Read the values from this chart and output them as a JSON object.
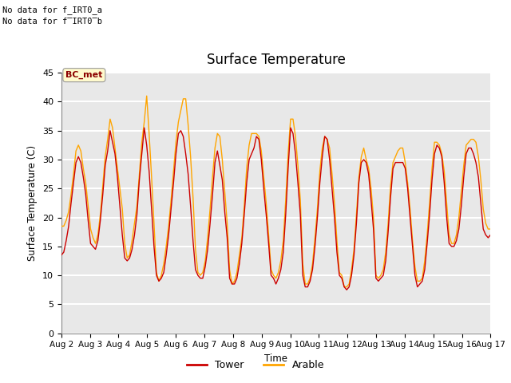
{
  "title": "Surface Temperature",
  "ylabel": "Surface Temperature (C)",
  "xlabel": "Time",
  "no_data_text_1": "No data for f_IRT0_a",
  "no_data_text_2": "No data for f̅IRT0̅b",
  "annotation_text": "BC_met",
  "annotation_color_text": "#8B0000",
  "annotation_color_bg": "#FFFACD",
  "ylim": [
    0,
    45
  ],
  "yticks": [
    0,
    5,
    10,
    15,
    20,
    25,
    30,
    35,
    40,
    45
  ],
  "xtick_labels": [
    "Aug 2",
    "Aug 3",
    "Aug 4",
    "Aug 5",
    "Aug 6",
    "Aug 7",
    "Aug 8",
    "Aug 9",
    "Aug 10",
    "Aug 11",
    "Aug 12",
    "Aug 13",
    "Aug 14",
    "Aug 15",
    "Aug 16",
    "Aug 17"
  ],
  "tower_color": "#CC0000",
  "arable_color": "#FFA500",
  "plot_bg_color": "#E8E8E8",
  "legend_labels": [
    "Tower",
    "Arable"
  ],
  "grid_color": "#FFFFFF",
  "tower_data": [
    13.5,
    14.0,
    16.0,
    18.5,
    22.5,
    26.0,
    29.5,
    30.5,
    29.5,
    27.0,
    24.0,
    19.5,
    15.5,
    15.0,
    14.5,
    16.0,
    19.5,
    24.0,
    29.0,
    31.5,
    35.0,
    33.0,
    31.0,
    27.0,
    22.0,
    17.0,
    13.0,
    12.5,
    13.0,
    14.5,
    17.0,
    20.5,
    26.5,
    31.0,
    35.5,
    32.5,
    28.0,
    21.5,
    15.0,
    10.0,
    9.0,
    9.5,
    10.5,
    13.5,
    17.0,
    21.5,
    26.0,
    31.0,
    34.5,
    35.0,
    34.0,
    31.0,
    27.5,
    22.0,
    16.0,
    11.0,
    10.0,
    9.5,
    9.5,
    11.5,
    14.5,
    19.0,
    24.0,
    29.5,
    31.5,
    29.0,
    26.5,
    21.0,
    16.5,
    9.5,
    8.5,
    8.5,
    9.5,
    12.0,
    15.5,
    20.5,
    26.0,
    30.0,
    31.0,
    32.0,
    34.0,
    33.5,
    30.0,
    25.0,
    20.5,
    15.5,
    10.0,
    9.5,
    8.5,
    9.5,
    11.0,
    14.0,
    20.5,
    28.5,
    35.5,
    34.5,
    31.0,
    26.0,
    20.5,
    10.0,
    8.0,
    8.0,
    9.0,
    11.0,
    15.0,
    20.0,
    26.0,
    30.5,
    34.0,
    33.5,
    30.0,
    25.0,
    20.0,
    14.0,
    10.0,
    9.5,
    8.0,
    7.5,
    8.0,
    10.0,
    13.5,
    19.0,
    26.0,
    29.5,
    30.0,
    29.5,
    27.5,
    23.0,
    18.0,
    9.5,
    9.0,
    9.5,
    10.0,
    12.5,
    17.5,
    23.5,
    28.5,
    29.5,
    29.5,
    29.5,
    29.5,
    28.5,
    25.0,
    20.0,
    15.0,
    10.0,
    8.0,
    8.5,
    9.0,
    11.0,
    15.5,
    20.5,
    26.5,
    31.0,
    32.5,
    32.0,
    30.5,
    26.0,
    20.0,
    15.5,
    15.0,
    15.0,
    16.0,
    18.0,
    22.0,
    27.0,
    31.0,
    32.0,
    32.0,
    31.0,
    29.5,
    27.0,
    22.5,
    18.0,
    17.0,
    16.5,
    17.0
  ],
  "arable_data": [
    18.5,
    18.5,
    19.5,
    21.0,
    24.0,
    27.5,
    31.5,
    32.5,
    31.5,
    28.5,
    26.0,
    22.0,
    18.0,
    16.5,
    15.5,
    17.0,
    20.5,
    25.5,
    30.5,
    33.5,
    37.0,
    35.5,
    32.0,
    28.5,
    25.0,
    21.5,
    15.5,
    13.0,
    13.5,
    16.0,
    19.0,
    22.0,
    27.5,
    33.0,
    36.5,
    41.0,
    34.5,
    27.0,
    19.0,
    10.5,
    9.0,
    10.0,
    12.0,
    15.0,
    18.5,
    23.0,
    28.0,
    33.0,
    36.5,
    38.5,
    40.5,
    40.5,
    36.0,
    30.5,
    23.5,
    14.5,
    10.5,
    10.0,
    10.5,
    12.5,
    16.5,
    21.5,
    27.0,
    32.0,
    34.5,
    34.0,
    30.0,
    24.5,
    19.0,
    11.0,
    8.5,
    9.0,
    10.5,
    13.5,
    16.5,
    22.0,
    28.5,
    32.5,
    34.5,
    34.5,
    34.5,
    34.0,
    31.5,
    27.0,
    22.5,
    17.0,
    11.0,
    10.0,
    9.5,
    10.5,
    12.5,
    16.0,
    23.0,
    31.0,
    37.0,
    37.0,
    34.0,
    29.0,
    23.0,
    12.0,
    8.5,
    8.5,
    9.5,
    12.0,
    16.5,
    21.5,
    28.0,
    32.0,
    34.0,
    33.5,
    32.0,
    27.5,
    22.5,
    16.0,
    10.5,
    10.0,
    8.0,
    8.0,
    8.5,
    11.0,
    14.5,
    20.5,
    27.0,
    30.5,
    32.0,
    30.0,
    28.5,
    25.0,
    20.0,
    10.0,
    9.5,
    10.0,
    11.0,
    14.0,
    19.0,
    25.5,
    29.5,
    30.5,
    31.5,
    32.0,
    32.0,
    29.5,
    26.0,
    21.5,
    16.0,
    11.5,
    9.0,
    9.0,
    9.5,
    12.5,
    17.0,
    22.5,
    28.5,
    33.0,
    33.0,
    32.5,
    31.0,
    28.0,
    22.5,
    17.0,
    15.5,
    15.5,
    17.0,
    20.0,
    24.5,
    29.0,
    32.5,
    33.0,
    33.5,
    33.5,
    33.0,
    30.5,
    26.5,
    21.5,
    19.0,
    18.0,
    18.0
  ]
}
